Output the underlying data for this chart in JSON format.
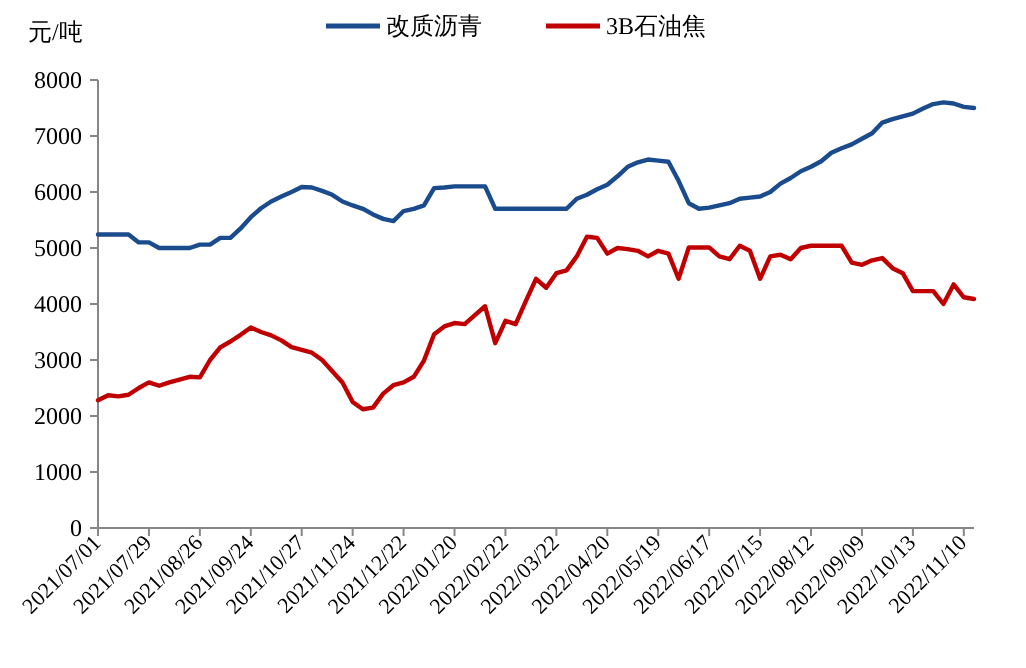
{
  "chart_data": {
    "type": "line",
    "ylabel": "元/吨",
    "legend": "top",
    "grid": false,
    "ylim": [
      0,
      8000
    ],
    "yticks": [
      0,
      1000,
      2000,
      3000,
      4000,
      5000,
      6000,
      7000,
      8000
    ],
    "categories": [
      "2021/07/01",
      null,
      null,
      null,
      null,
      "2021/07/29",
      null,
      null,
      null,
      null,
      "2021/08/26",
      null,
      null,
      null,
      null,
      "2021/09/24",
      null,
      null,
      null,
      null,
      "2021/10/27",
      null,
      null,
      null,
      null,
      "2021/11/24",
      null,
      null,
      null,
      null,
      "2021/12/22",
      null,
      null,
      null,
      null,
      "2022/01/20",
      null,
      null,
      null,
      null,
      "2022/02/22",
      null,
      null,
      null,
      null,
      "2022/03/22",
      null,
      null,
      null,
      null,
      "2022/04/20",
      null,
      null,
      null,
      null,
      "2022/05/19",
      null,
      null,
      null,
      null,
      "2022/06/17",
      null,
      null,
      null,
      null,
      "2022/07/15",
      null,
      null,
      null,
      null,
      "2022/08/12",
      null,
      null,
      null,
      null,
      "2022/09/09",
      null,
      null,
      null,
      null,
      "2022/10/13",
      null,
      null,
      null,
      null,
      "2022/11/10",
      null
    ],
    "series": [
      {
        "name": "改质沥青",
        "color": "#1a4b8c",
        "values": [
          5240,
          5240,
          5240,
          5240,
          5100,
          5100,
          5000,
          5000,
          5000,
          5000,
          5060,
          5060,
          5180,
          5180,
          5350,
          5550,
          5710,
          5830,
          5920,
          6000,
          6090,
          6080,
          6020,
          5950,
          5830,
          5760,
          5700,
          5600,
          5520,
          5480,
          5660,
          5700,
          5760,
          6070,
          6080,
          6100,
          6100,
          6100,
          6100,
          5700,
          5700,
          5700,
          5700,
          5700,
          5700,
          5700,
          5700,
          5880,
          5950,
          6050,
          6130,
          6280,
          6450,
          6530,
          6580,
          6560,
          6540,
          6200,
          5800,
          5700,
          5720,
          5760,
          5800,
          5880,
          5900,
          5920,
          6000,
          6150,
          6250,
          6370,
          6450,
          6550,
          6700,
          6780,
          6850,
          6950,
          7050,
          7240,
          7300,
          7350,
          7400,
          7490,
          7570,
          7600,
          7580,
          7520,
          7500
        ]
      },
      {
        "name": "3B石油焦",
        "color": "#c00000",
        "values": [
          2280,
          2370,
          2350,
          2380,
          2500,
          2600,
          2540,
          2600,
          2650,
          2700,
          2690,
          3000,
          3225,
          3330,
          3450,
          3580,
          3500,
          3440,
          3350,
          3230,
          3180,
          3130,
          3000,
          2800,
          2600,
          2250,
          2120,
          2150,
          2400,
          2550,
          2600,
          2700,
          2990,
          3460,
          3600,
          3660,
          3640,
          3800,
          3960,
          3300,
          3700,
          3640,
          4050,
          4450,
          4290,
          4550,
          4600,
          4850,
          5200,
          5180,
          4900,
          5000,
          4980,
          4950,
          4850,
          4950,
          4900,
          4450,
          5010,
          5010,
          5010,
          4850,
          4800,
          5040,
          4950,
          4450,
          4850,
          4880,
          4800,
          5000,
          5040,
          5040,
          5040,
          5040,
          4740,
          4700,
          4780,
          4820,
          4640,
          4550,
          4230,
          4230,
          4230,
          4000,
          4350,
          4120,
          4090
        ]
      }
    ]
  }
}
